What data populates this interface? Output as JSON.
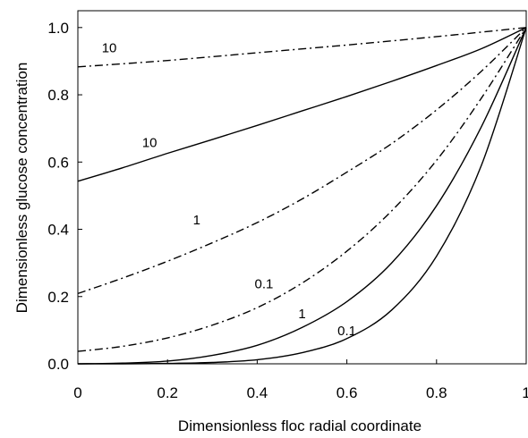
{
  "chart_data": {
    "type": "line",
    "xlabel": "Dimensionless floc radial coordinate",
    "ylabel": "Dimensionless glucose concentration",
    "xlim": [
      0,
      1
    ],
    "ylim": [
      0,
      1.05
    ],
    "x_ticks": [
      "0",
      "0.2",
      "0.4",
      "0.6",
      "0.8",
      "1"
    ],
    "y_ticks": [
      "0.0",
      "0.2",
      "0.4",
      "0.6",
      "0.8",
      "1.0"
    ],
    "grid": false,
    "legend": "none",
    "series": [
      {
        "label": "10",
        "style": "dash-dot",
        "x": [
          0,
          0.2,
          0.4,
          0.6,
          0.8,
          1.0
        ],
        "y": [
          0.883,
          0.902,
          0.925,
          0.948,
          0.973,
          1.0
        ]
      },
      {
        "label": "10",
        "style": "solid",
        "x": [
          0,
          0.1,
          0.2,
          0.3,
          0.4,
          0.5,
          0.6,
          0.7,
          0.8,
          0.9,
          1.0
        ],
        "y": [
          0.543,
          0.583,
          0.626,
          0.667,
          0.709,
          0.752,
          0.795,
          0.84,
          0.887,
          0.937,
          1.0
        ]
      },
      {
        "label": "1",
        "style": "dash-dot",
        "x": [
          0,
          0.1,
          0.2,
          0.3,
          0.4,
          0.5,
          0.6,
          0.7,
          0.8,
          0.9,
          1.0
        ],
        "y": [
          0.209,
          0.255,
          0.305,
          0.36,
          0.42,
          0.49,
          0.57,
          0.655,
          0.755,
          0.87,
          1.0
        ]
      },
      {
        "label": "0.1",
        "style": "dash-dot",
        "x": [
          0,
          0.1,
          0.2,
          0.3,
          0.4,
          0.5,
          0.6,
          0.7,
          0.8,
          0.9,
          1.0
        ],
        "y": [
          0.037,
          0.052,
          0.077,
          0.115,
          0.167,
          0.24,
          0.335,
          0.455,
          0.605,
          0.79,
          1.0
        ]
      },
      {
        "label": "1",
        "style": "solid",
        "x": [
          0,
          0.1,
          0.2,
          0.3,
          0.4,
          0.5,
          0.6,
          0.7,
          0.8,
          0.9,
          1.0
        ],
        "y": [
          0.0,
          0.002,
          0.008,
          0.025,
          0.055,
          0.108,
          0.185,
          0.3,
          0.47,
          0.705,
          1.0
        ]
      },
      {
        "label": "0.1",
        "style": "solid",
        "x": [
          0,
          0.1,
          0.2,
          0.3,
          0.4,
          0.5,
          0.6,
          0.7,
          0.8,
          0.9,
          1.0
        ],
        "y": [
          0.0,
          0.0,
          0.001,
          0.004,
          0.012,
          0.033,
          0.075,
          0.16,
          0.32,
          0.59,
          1.0
        ]
      }
    ],
    "curve_labels": [
      {
        "text": "10",
        "x": 0.07,
        "y": 0.927
      },
      {
        "text": "10",
        "x": 0.16,
        "y": 0.645
      },
      {
        "text": "1",
        "x": 0.265,
        "y": 0.415
      },
      {
        "text": "0.1",
        "x": 0.415,
        "y": 0.225
      },
      {
        "text": "1",
        "x": 0.5,
        "y": 0.135
      },
      {
        "text": "0.1",
        "x": 0.6,
        "y": 0.085
      }
    ]
  }
}
